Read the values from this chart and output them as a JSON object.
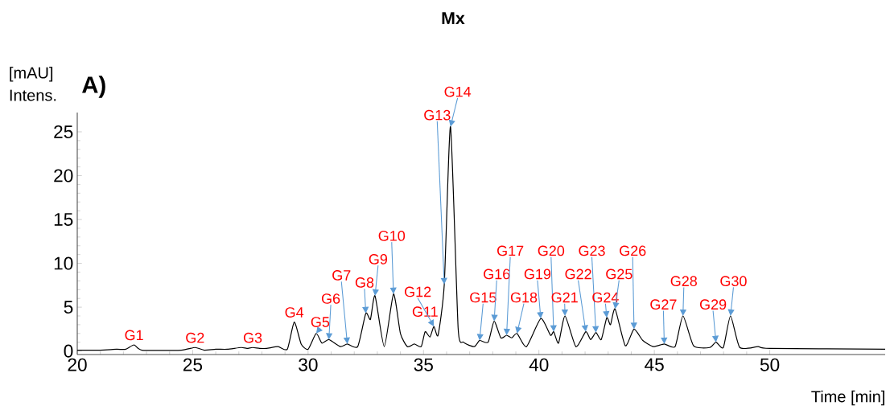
{
  "chart_data": {
    "type": "line",
    "title": "Mx",
    "xlabel": "Time [min]",
    "ylabel": "[mAU] Intens.",
    "xlim": [
      20,
      55
    ],
    "ylim": [
      -0.4,
      27.2
    ],
    "xticks": [
      20,
      25,
      30,
      35,
      40,
      45,
      50
    ],
    "yticks": [
      0,
      5,
      10,
      15,
      20,
      25
    ],
    "grid": false,
    "marker": "none",
    "line_style": "solid",
    "series": [
      {
        "color": "#000000",
        "x": [
          20,
          21,
          21.7,
          22.1,
          22.46,
          22.8,
          24.5,
          25.1,
          25.5,
          26,
          26.5,
          27.1,
          27.35,
          27.6,
          27.9,
          28.2,
          28.7,
          29.1,
          29.4,
          29.7,
          30.0,
          30.35,
          30.6,
          30.9,
          31.4,
          31.7,
          32.15,
          32.5,
          32.7,
          32.9,
          33.3,
          33.7,
          34.0,
          34.3,
          34.6,
          34.9,
          35.07,
          35.28,
          35.45,
          35.63,
          35.9,
          36.17,
          36.5,
          36.73,
          37.2,
          37.43,
          37.8,
          38.06,
          38.35,
          38.6,
          38.82,
          39.05,
          39.46,
          40.08,
          40.5,
          40.64,
          40.85,
          41.13,
          41.6,
          42.03,
          42.24,
          42.47,
          42.7,
          42.94,
          43.1,
          43.3,
          43.74,
          44.12,
          44.5,
          44.96,
          45.43,
          45.9,
          46.24,
          46.7,
          47.4,
          47.67,
          47.99,
          48.3,
          48.7,
          49.5,
          50,
          55
        ],
        "values": [
          0.1,
          0.1,
          0.2,
          0.2,
          0.7,
          0.1,
          0.1,
          0.4,
          0.1,
          0.2,
          0.2,
          0.4,
          0.3,
          0.4,
          0.3,
          0.3,
          0.5,
          0.2,
          3.3,
          0.8,
          0.2,
          2.0,
          0.9,
          1.3,
          0.5,
          0.8,
          0.5,
          4.3,
          3.6,
          6.3,
          0.5,
          6.5,
          2.0,
          0.5,
          0.8,
          0.5,
          2.2,
          1.6,
          2.8,
          1.8,
          7.6,
          25.6,
          2.6,
          1.0,
          0.5,
          1.2,
          1.0,
          3.4,
          1.5,
          1.8,
          1.5,
          2.0,
          0.5,
          3.7,
          1.8,
          2.2,
          0.9,
          4.0,
          0.5,
          2.2,
          1.3,
          2.1,
          1.3,
          3.8,
          3.0,
          4.8,
          0.6,
          2.5,
          1.2,
          0.5,
          0.8,
          0.5,
          4.0,
          0.6,
          0.4,
          1.0,
          0.4,
          4.0,
          0.4,
          0.5,
          0.3,
          0.2
        ]
      }
    ],
    "annotations": [
      "A)",
      {
        "text": "G1",
        "x": 22.46,
        "y": 0.7
      },
      {
        "text": "G2",
        "x": 25.1,
        "y": 0.4
      },
      {
        "text": "G3",
        "x": 27.6,
        "y": 0.45
      },
      {
        "text": "G4",
        "x": 29.4,
        "y": 3.3
      },
      {
        "text": "G5",
        "x": 30.35,
        "y": 2.0
      },
      {
        "text": "G6",
        "x": 30.9,
        "y": 1.3
      },
      {
        "text": "G7",
        "x": 31.7,
        "y": 0.8
      },
      {
        "text": "G8",
        "x": 32.5,
        "y": 4.3
      },
      {
        "text": "G9",
        "x": 32.9,
        "y": 6.3
      },
      {
        "text": "G10",
        "x": 33.7,
        "y": 6.5
      },
      {
        "text": "G11",
        "x": 35.07,
        "y": 2.2
      },
      {
        "text": "G12",
        "x": 35.45,
        "y": 2.8
      },
      {
        "text": "G13",
        "x": 35.9,
        "y": 7.6
      },
      {
        "text": "G14",
        "x": 36.17,
        "y": 25.6
      },
      {
        "text": "G15",
        "x": 37.43,
        "y": 1.2
      },
      {
        "text": "G16",
        "x": 38.06,
        "y": 3.4
      },
      {
        "text": "G17",
        "x": 38.6,
        "y": 1.8
      },
      {
        "text": "G18",
        "x": 39.05,
        "y": 2.0
      },
      {
        "text": "G19",
        "x": 40.08,
        "y": 3.7
      },
      {
        "text": "G20",
        "x": 40.64,
        "y": 2.2
      },
      {
        "text": "G21",
        "x": 41.13,
        "y": 4.0
      },
      {
        "text": "G22",
        "x": 42.03,
        "y": 2.2
      },
      {
        "text": "G23",
        "x": 42.47,
        "y": 2.1
      },
      {
        "text": "G24",
        "x": 42.94,
        "y": 3.8
      },
      {
        "text": "G25",
        "x": 43.3,
        "y": 4.8
      },
      {
        "text": "G26",
        "x": 44.12,
        "y": 2.5
      },
      {
        "text": "G27",
        "x": 45.43,
        "y": 0.8
      },
      {
        "text": "G28",
        "x": 46.24,
        "y": 4.0
      },
      {
        "text": "G29",
        "x": 47.67,
        "y": 1.0
      },
      {
        "text": "G30",
        "x": 48.3,
        "y": 4.0
      }
    ]
  }
}
